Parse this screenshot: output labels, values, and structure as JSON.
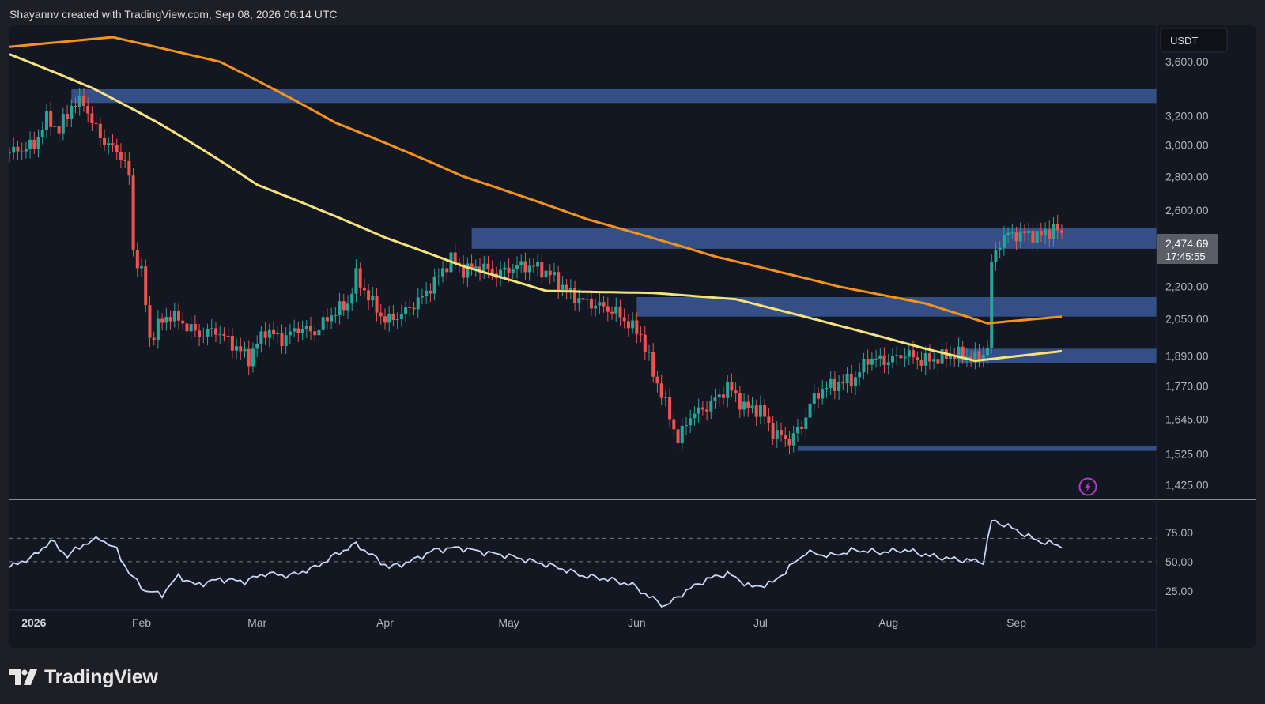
{
  "header": {
    "caption": "Shayannv created with TradingView.com, Sep 08, 2026 06:14 UTC"
  },
  "brand": {
    "name": "TradingView",
    "logo_icon": "tradingview-logo-icon"
  },
  "colors": {
    "background": "#131722",
    "up": "#26a69a",
    "down": "#ef5350",
    "ma_slow": "#f7931a",
    "ma_fast": "#f6e27a",
    "zone": "#3d5fa3",
    "rsi_line": "#c9d7f2"
  },
  "chart_data": {
    "type": "candlestick",
    "currency": "USDT",
    "symbol_hint": "ETH/USDT daily",
    "last_price": "2,474.69",
    "countdown": "17:45:55",
    "price_axis": {
      "scale": "log",
      "ticks": [
        "3,600.00",
        "3,200.00",
        "3,000.00",
        "2,800.00",
        "2,600.00",
        "2,200.00",
        "2,050.00",
        "1,890.00",
        "1,770.00",
        "1,645.00",
        "1,525.00",
        "1,425.00"
      ],
      "range": [
        1390,
        3900
      ]
    },
    "time_axis": {
      "ticks": [
        {
          "label": "2026",
          "date": "2026-01-01",
          "bold": true
        },
        {
          "label": "Feb",
          "date": "2026-02-01"
        },
        {
          "label": "Mar",
          "date": "2026-03-01"
        },
        {
          "label": "Apr",
          "date": "2026-04-01"
        },
        {
          "label": "May",
          "date": "2026-05-01"
        },
        {
          "label": "Jun",
          "date": "2026-06-01"
        },
        {
          "label": "Jul",
          "date": "2026-07-01"
        },
        {
          "label": "Aug",
          "date": "2026-08-01"
        },
        {
          "label": "Sep",
          "date": "2026-09-01"
        }
      ],
      "range": [
        "2025-12-31",
        "2026-10-05"
      ]
    },
    "close_anchors": [
      [
        "2025-12-31",
        2950
      ],
      [
        "2026-01-06",
        3000
      ],
      [
        "2026-01-09",
        3180
      ],
      [
        "2026-01-12",
        3100
      ],
      [
        "2026-01-15",
        3270
      ],
      [
        "2026-01-18",
        3300
      ],
      [
        "2026-01-20",
        3150
      ],
      [
        "2026-01-23",
        3020
      ],
      [
        "2026-01-27",
        2940
      ],
      [
        "2026-01-29",
        2800
      ],
      [
        "2026-01-30",
        2380
      ],
      [
        "2026-02-01",
        2270
      ],
      [
        "2026-02-03",
        1960
      ],
      [
        "2026-02-05",
        2020
      ],
      [
        "2026-02-08",
        2070
      ],
      [
        "2026-02-11",
        2030
      ],
      [
        "2026-02-15",
        1980
      ],
      [
        "2026-02-19",
        2000
      ],
      [
        "2026-02-23",
        1940
      ],
      [
        "2026-02-27",
        1880
      ],
      [
        "2026-03-03",
        2000
      ],
      [
        "2026-03-07",
        1960
      ],
      [
        "2026-03-11",
        2010
      ],
      [
        "2026-03-15",
        1990
      ],
      [
        "2026-03-19",
        2070
      ],
      [
        "2026-03-23",
        2120
      ],
      [
        "2026-03-25",
        2250
      ],
      [
        "2026-03-28",
        2150
      ],
      [
        "2026-04-01",
        2040
      ],
      [
        "2026-04-05",
        2070
      ],
      [
        "2026-04-10",
        2150
      ],
      [
        "2026-04-14",
        2250
      ],
      [
        "2026-04-17",
        2340
      ],
      [
        "2026-04-20",
        2280
      ],
      [
        "2026-04-24",
        2300
      ],
      [
        "2026-04-28",
        2260
      ],
      [
        "2026-05-03",
        2300
      ],
      [
        "2026-05-07",
        2300
      ],
      [
        "2026-05-11",
        2260
      ],
      [
        "2026-05-15",
        2180
      ],
      [
        "2026-05-19",
        2130
      ],
      [
        "2026-05-23",
        2110
      ],
      [
        "2026-05-27",
        2080
      ],
      [
        "2026-05-31",
        2010
      ],
      [
        "2026-06-02",
        1980
      ],
      [
        "2026-06-05",
        1820
      ],
      [
        "2026-06-08",
        1700
      ],
      [
        "2026-06-11",
        1570
      ],
      [
        "2026-06-14",
        1660
      ],
      [
        "2026-06-17",
        1680
      ],
      [
        "2026-06-21",
        1730
      ],
      [
        "2026-06-23",
        1770
      ],
      [
        "2026-06-27",
        1690
      ],
      [
        "2026-07-01",
        1680
      ],
      [
        "2026-07-04",
        1600
      ],
      [
        "2026-07-08",
        1570
      ],
      [
        "2026-07-11",
        1620
      ],
      [
        "2026-07-13",
        1700
      ],
      [
        "2026-07-16",
        1760
      ],
      [
        "2026-07-20",
        1780
      ],
      [
        "2026-07-24",
        1800
      ],
      [
        "2026-07-27",
        1880
      ],
      [
        "2026-08-01",
        1870
      ],
      [
        "2026-08-05",
        1900
      ],
      [
        "2026-08-09",
        1870
      ],
      [
        "2026-08-13",
        1880
      ],
      [
        "2026-08-17",
        1900
      ],
      [
        "2026-08-20",
        1890
      ],
      [
        "2026-08-23",
        1880
      ],
      [
        "2026-08-25",
        1930
      ],
      [
        "2026-08-26",
        2300
      ],
      [
        "2026-08-27",
        2380
      ],
      [
        "2026-08-29",
        2460
      ],
      [
        "2026-09-03",
        2470
      ],
      [
        "2026-09-07",
        2460
      ],
      [
        "2026-09-10",
        2500
      ],
      [
        "2026-09-12",
        2474.69
      ]
    ],
    "moving_averages": [
      {
        "id": "ma-slow",
        "color": "#f7931a",
        "points": [
          [
            "2025-12-31",
            3720
          ],
          [
            "2026-01-25",
            3800
          ],
          [
            "2026-02-20",
            3600
          ],
          [
            "2026-03-20",
            3150
          ],
          [
            "2026-04-20",
            2800
          ],
          [
            "2026-05-20",
            2550
          ],
          [
            "2026-06-20",
            2350
          ],
          [
            "2026-07-20",
            2200
          ],
          [
            "2026-08-10",
            2120
          ],
          [
            "2026-08-25",
            2030
          ],
          [
            "2026-09-12",
            2060
          ]
        ]
      },
      {
        "id": "ma-fast",
        "color": "#f6e27a",
        "points": [
          [
            "2025-12-31",
            3660
          ],
          [
            "2026-01-20",
            3400
          ],
          [
            "2026-02-05",
            3150
          ],
          [
            "2026-03-01",
            2750
          ],
          [
            "2026-04-01",
            2450
          ],
          [
            "2026-04-20",
            2300
          ],
          [
            "2026-05-10",
            2180
          ],
          [
            "2026-05-20",
            2175
          ],
          [
            "2026-06-05",
            2170
          ],
          [
            "2026-06-25",
            2140
          ],
          [
            "2026-07-20",
            2020
          ],
          [
            "2026-08-10",
            1920
          ],
          [
            "2026-08-22",
            1870
          ],
          [
            "2026-09-12",
            1910
          ]
        ]
      }
    ],
    "zones": [
      {
        "from": "2026-01-15",
        "to": "2026-10-05",
        "low": 3290,
        "high": 3390
      },
      {
        "from": "2026-04-22",
        "to": "2026-10-05",
        "low": 2390,
        "high": 2500
      },
      {
        "from": "2026-06-01",
        "to": "2026-10-05",
        "low": 2060,
        "high": 2150
      },
      {
        "from": "2026-08-18",
        "to": "2026-10-05",
        "low": 1860,
        "high": 1920
      },
      {
        "from": "2026-07-10",
        "to": "2026-10-05",
        "low": 1535,
        "high": 1550
      }
    ],
    "rsi": {
      "ticks": [
        "75.00",
        "50.00",
        "25.00"
      ],
      "levels": [
        70,
        50,
        30
      ],
      "range": [
        10,
        100
      ],
      "anchors": [
        [
          "2025-12-31",
          45
        ],
        [
          "2026-01-06",
          55
        ],
        [
          "2026-01-10",
          68
        ],
        [
          "2026-01-14",
          55
        ],
        [
          "2026-01-18",
          65
        ],
        [
          "2026-01-22",
          70
        ],
        [
          "2026-01-26",
          60
        ],
        [
          "2026-01-29",
          40
        ],
        [
          "2026-02-02",
          25
        ],
        [
          "2026-02-06",
          22
        ],
        [
          "2026-02-10",
          38
        ],
        [
          "2026-02-14",
          30
        ],
        [
          "2026-02-20",
          35
        ],
        [
          "2026-02-26",
          33
        ],
        [
          "2026-03-03",
          40
        ],
        [
          "2026-03-09",
          38
        ],
        [
          "2026-03-15",
          45
        ],
        [
          "2026-03-21",
          58
        ],
        [
          "2026-03-25",
          65
        ],
        [
          "2026-03-29",
          55
        ],
        [
          "2026-04-02",
          45
        ],
        [
          "2026-04-07",
          50
        ],
        [
          "2026-04-13",
          60
        ],
        [
          "2026-04-19",
          62
        ],
        [
          "2026-04-25",
          58
        ],
        [
          "2026-05-01",
          55
        ],
        [
          "2026-05-07",
          50
        ],
        [
          "2026-05-13",
          45
        ],
        [
          "2026-05-19",
          38
        ],
        [
          "2026-05-25",
          35
        ],
        [
          "2026-05-31",
          30
        ],
        [
          "2026-06-04",
          20
        ],
        [
          "2026-06-08",
          12
        ],
        [
          "2026-06-13",
          25
        ],
        [
          "2026-06-18",
          35
        ],
        [
          "2026-06-23",
          40
        ],
        [
          "2026-06-29",
          28
        ],
        [
          "2026-07-04",
          32
        ],
        [
          "2026-07-08",
          45
        ],
        [
          "2026-07-12",
          58
        ],
        [
          "2026-07-18",
          55
        ],
        [
          "2026-07-24",
          60
        ],
        [
          "2026-07-30",
          58
        ],
        [
          "2026-08-05",
          60
        ],
        [
          "2026-08-11",
          55
        ],
        [
          "2026-08-17",
          52
        ],
        [
          "2026-08-24",
          50
        ],
        [
          "2026-08-26",
          85
        ],
        [
          "2026-08-29",
          82
        ],
        [
          "2026-09-02",
          75
        ],
        [
          "2026-09-06",
          68
        ],
        [
          "2026-09-10",
          65
        ],
        [
          "2026-09-12",
          63
        ]
      ]
    }
  }
}
